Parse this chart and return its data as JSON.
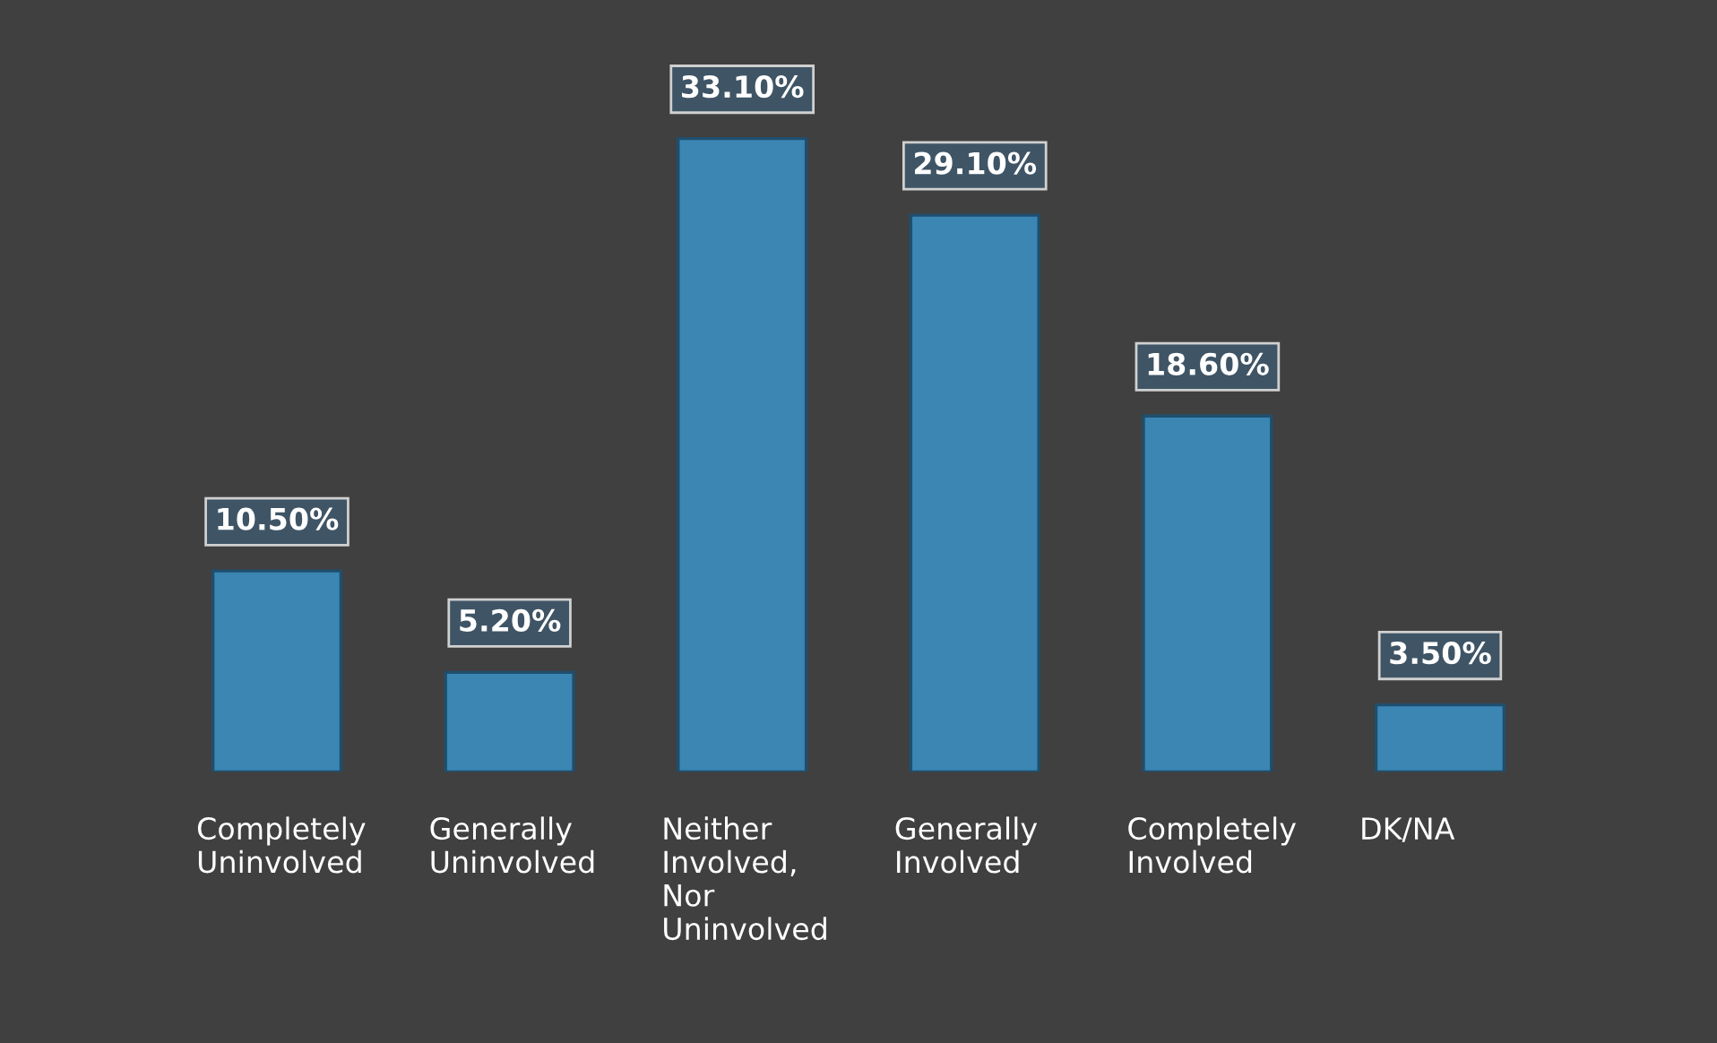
{
  "chart_data": {
    "type": "bar",
    "categories": [
      "Completely Uninvolved",
      "Generally Uninvolved",
      "Neither Involved, Nor Uninvolved",
      "Generally Involved",
      "Completely Involved",
      "DK/NA"
    ],
    "values": [
      10.5,
      5.2,
      33.1,
      29.1,
      18.6,
      3.5
    ],
    "value_labels": [
      "10.50%",
      "5.20%",
      "33.10%",
      "29.10%",
      "18.60%",
      "3.50%"
    ],
    "color": "#3b86b3",
    "grid": false,
    "legend": false,
    "tick_labels": "x"
  }
}
